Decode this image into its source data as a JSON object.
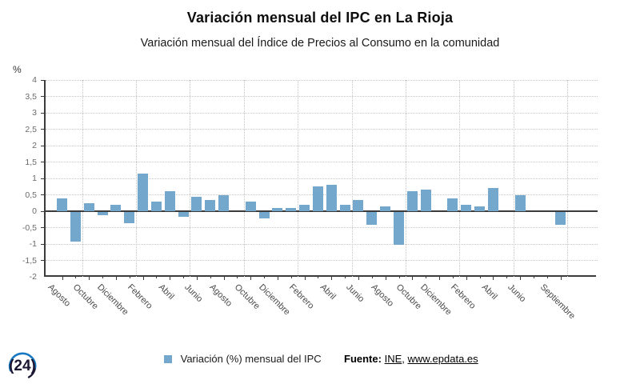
{
  "header": {
    "title": "Variación mensual del IPC en La Rioja",
    "subtitle": "Variación mensual del Índice de Precios al Consumo en la comunidad"
  },
  "chart_data": {
    "type": "bar",
    "title": "Variación mensual del IPC en La Rioja",
    "subtitle": "Variación mensual del Índice de Precios al Consumo en la comunidad",
    "ylabel": "%",
    "unit_label": "%",
    "ylim": [
      -2,
      4
    ],
    "ytick_step": 0.5,
    "ytick_labels": [
      "4",
      "3,5",
      "3",
      "2,5",
      "2",
      "1,5",
      "1",
      "0,5",
      "0",
      "-0,5",
      "-1",
      "-1,5",
      "-2"
    ],
    "grid": "dotted",
    "n_months": 38,
    "values": [
      0.4,
      -0.9,
      0.25,
      -0.1,
      0.2,
      -0.35,
      1.15,
      0.3,
      0.6,
      -0.15,
      0.45,
      0.35,
      0.5,
      0,
      0.3,
      -0.2,
      0.1,
      0.1,
      0.2,
      0.75,
      0.8,
      0.2,
      0.35,
      -0.4,
      0.15,
      -1.0,
      0.6,
      0.65,
      0,
      0.4,
      0.2,
      0.15,
      0.7,
      0,
      0.5,
      0,
      0,
      -0.4
    ],
    "tick_labels": [
      "Agosto",
      "Octubre",
      "Diciembre",
      "Febrero",
      "Abril",
      "Junio",
      "Agosto",
      "Octubre",
      "Diciembre",
      "Febrero",
      "Abril",
      "Junio",
      "Agosto",
      "Octubre",
      "Diciembre",
      "Febrero",
      "Abril",
      "Junio",
      "Septiembre"
    ],
    "tick_positions": [
      0,
      2,
      4,
      6,
      8,
      10,
      12,
      14,
      16,
      18,
      20,
      22,
      24,
      26,
      28,
      30,
      32,
      34,
      37
    ],
    "vgrid_boundaries": [
      2,
      6,
      10,
      14,
      18,
      22,
      26,
      30,
      34,
      38
    ],
    "bar_color": "#74a7cc",
    "legend_position": "bottom"
  },
  "legend": {
    "label": "Variación (%) mensual del IPC",
    "swatch_color": "#74a7cc"
  },
  "source": {
    "prefix": "Fuente:",
    "link1": "INE",
    "separator": ",",
    "link2": "www.epdata.es"
  },
  "logo": {
    "text": "(24)",
    "arc_blue": "#1879c0",
    "arc_dark": "#1b1733"
  }
}
